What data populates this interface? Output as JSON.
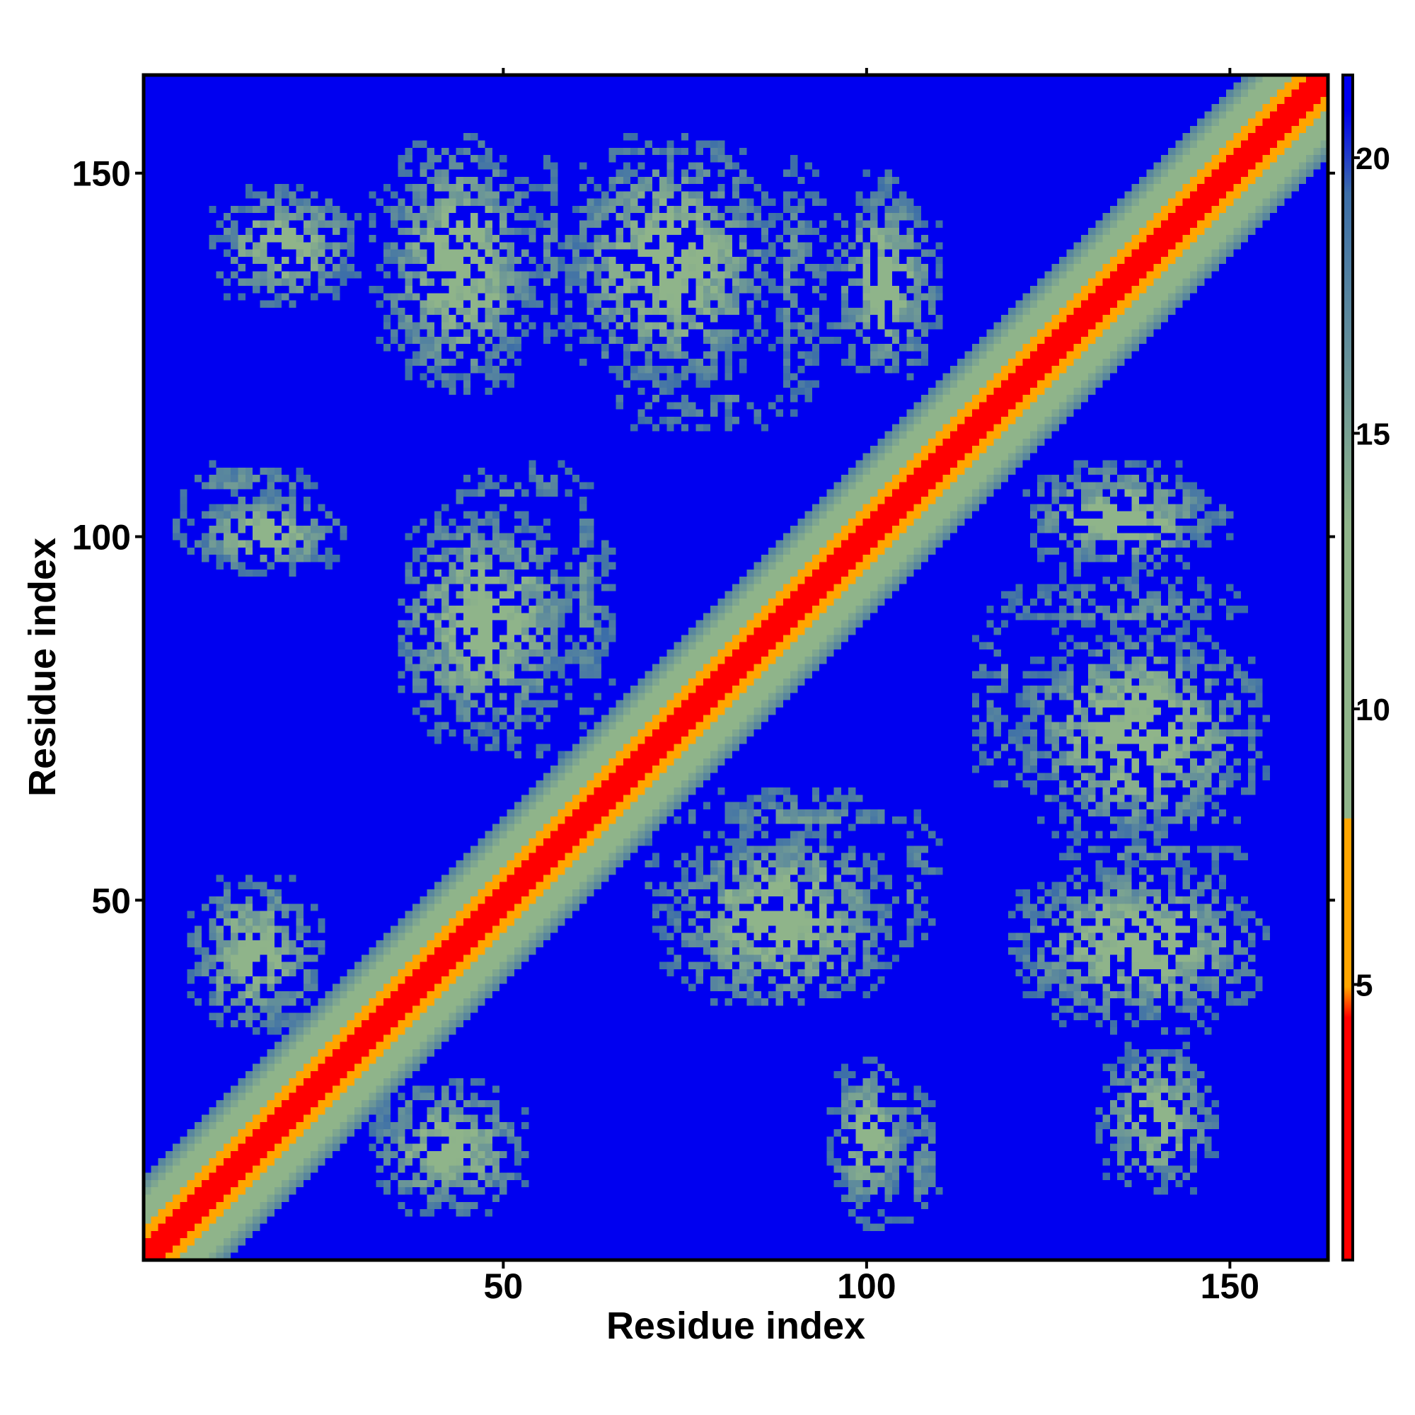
{
  "chart_data": {
    "type": "heatmap",
    "title": "",
    "xlabel": "Residue index",
    "ylabel": "Residue index",
    "xlim": [
      1,
      163
    ],
    "ylim": [
      1,
      163
    ],
    "x_ticks": [
      50,
      100,
      150
    ],
    "y_ticks": [
      50,
      100,
      150
    ],
    "colorbar": {
      "ticks": [
        5,
        10,
        15,
        20
      ],
      "range": [
        0,
        21.5
      ],
      "threshold": 8,
      "colors_below_threshold": [
        "#ff0000",
        "#ffa500"
      ],
      "colors_above_threshold": [
        "#8fb48a",
        "#3c6ea8"
      ],
      "background": "#0000f0"
    },
    "description_of_values": "Pairwise residue distance matrix, symmetric about the diagonal; values above ~21 are shown in blue.",
    "features": [
      {
        "kind": "diagonal",
        "from": 1,
        "to": 163
      },
      {
        "kind": "contact-region",
        "x": [
          33,
          55
        ],
        "y": [
          120,
          155
        ]
      },
      {
        "kind": "contact-region",
        "x": [
          58,
          88
        ],
        "y": [
          120,
          155
        ]
      },
      {
        "kind": "contact-region",
        "x": [
          35,
          60
        ],
        "y": [
          72,
          105
        ]
      },
      {
        "kind": "contact-region",
        "x": [
          7,
          28
        ],
        "y": [
          95,
          106
        ]
      },
      {
        "kind": "contact-region",
        "x": [
          7,
          25
        ],
        "y": [
          32,
          53
        ]
      },
      {
        "kind": "contact-region",
        "x": [
          70,
          110
        ],
        "y": [
          40,
          65
        ]
      },
      {
        "kind": "contact-region",
        "x": [
          115,
          155
        ],
        "y": [
          60,
          95
        ]
      },
      {
        "kind": "contact-region",
        "x": [
          125,
          155
        ],
        "y": [
          32,
          60
        ]
      },
      {
        "kind": "contact-region",
        "x": [
          95,
          110
        ],
        "y": [
          5,
          25
        ]
      },
      {
        "kind": "contact-region",
        "x": [
          132,
          148
        ],
        "y": [
          10,
          30
        ]
      },
      {
        "kind": "contact-region",
        "x": [
          122,
          148
        ],
        "y": [
          95,
          110
        ]
      },
      {
        "kind": "contact-region",
        "x": [
          95,
          110
        ],
        "y": [
          130,
          150
        ]
      }
    ]
  }
}
